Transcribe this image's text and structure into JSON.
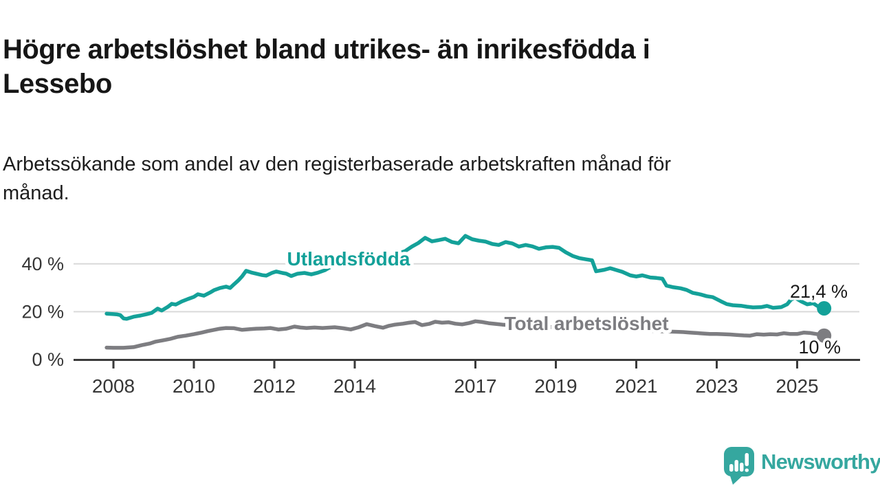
{
  "header": {
    "title_line1": "Högre arbetslöshet bland utrikes- än inrikesfödda i",
    "title_line2": "Lessebo",
    "subtitle_line1": "Arbetssökande som andel av den registerbaserade arbetskraften månad för",
    "subtitle_line2": "månad."
  },
  "colors": {
    "teal": "#14A199",
    "gray": "#7D7D81",
    "axis": "#3A3A3A",
    "grid": "#D9D9D9",
    "tick_text": "#363636",
    "value_text": "#1A1A1A",
    "logo": "#35A79F",
    "background": "#FFFFFF"
  },
  "footer": {
    "brand": "Newsworthy"
  },
  "chart_data": {
    "type": "line",
    "title": "Högre arbetslöshet bland utrikes- än inrikesfödda i Lessebo",
    "subtitle": "Arbetssökande som andel av den registerbaserade arbetskraften månad för månad.",
    "unit": "%",
    "grid": "horizontal",
    "legend_position": "inline-labels",
    "x_range": [
      2007.0,
      2026.6
    ],
    "y_range": [
      0,
      57
    ],
    "x_ticks": [
      2008,
      2010,
      2012,
      2014,
      2017,
      2019,
      2021,
      2023,
      2025
    ],
    "y_ticks": [
      {
        "value": 40,
        "label": "40 %"
      },
      {
        "value": 20,
        "label": "20 %"
      },
      {
        "value": 0,
        "label": "0 %"
      }
    ],
    "series": [
      {
        "id": "utlandsfodda",
        "name": "Utlandsfödda",
        "color": "#14A199",
        "end_value": 21.4,
        "end_label": "21,4 %",
        "points": [
          [
            2007.83,
            19.2
          ],
          [
            2008.0,
            19.0
          ],
          [
            2008.08,
            18.9
          ],
          [
            2008.17,
            18.6
          ],
          [
            2008.25,
            17.2
          ],
          [
            2008.33,
            17.0
          ],
          [
            2008.5,
            17.9
          ],
          [
            2008.67,
            18.4
          ],
          [
            2008.83,
            19.0
          ],
          [
            2008.95,
            19.5
          ],
          [
            2009.1,
            21.3
          ],
          [
            2009.2,
            20.5
          ],
          [
            2009.35,
            22.0
          ],
          [
            2009.45,
            23.3
          ],
          [
            2009.55,
            23.0
          ],
          [
            2009.7,
            24.3
          ],
          [
            2009.85,
            25.3
          ],
          [
            2010.0,
            26.2
          ],
          [
            2010.1,
            27.3
          ],
          [
            2010.25,
            26.7
          ],
          [
            2010.4,
            28.0
          ],
          [
            2010.5,
            29.0
          ],
          [
            2010.65,
            29.9
          ],
          [
            2010.8,
            30.5
          ],
          [
            2010.9,
            29.9
          ],
          [
            2011.0,
            31.5
          ],
          [
            2011.1,
            33.0
          ],
          [
            2011.2,
            34.8
          ],
          [
            2011.3,
            37.1
          ],
          [
            2011.45,
            36.3
          ],
          [
            2011.55,
            35.9
          ],
          [
            2011.7,
            35.3
          ],
          [
            2011.8,
            35.1
          ],
          [
            2011.95,
            36.3
          ],
          [
            2012.05,
            36.8
          ],
          [
            2012.2,
            36.2
          ],
          [
            2012.3,
            35.9
          ],
          [
            2012.42,
            34.9
          ],
          [
            2012.58,
            35.9
          ],
          [
            2012.75,
            36.2
          ],
          [
            2012.92,
            35.6
          ],
          [
            2013.08,
            36.3
          ],
          [
            2013.25,
            37.3
          ],
          [
            2013.42,
            38.9
          ],
          [
            2013.58,
            41.1
          ],
          [
            2013.75,
            42.6
          ],
          [
            2013.92,
            42.9
          ],
          [
            2014.08,
            41.6
          ],
          [
            2014.25,
            42.2
          ],
          [
            2014.42,
            43.1
          ],
          [
            2014.58,
            42.1
          ],
          [
            2014.75,
            41.4
          ],
          [
            2014.92,
            42.5
          ],
          [
            2015.08,
            44.4
          ],
          [
            2015.25,
            45.3
          ],
          [
            2015.42,
            47.2
          ],
          [
            2015.58,
            48.7
          ],
          [
            2015.75,
            50.9
          ],
          [
            2015.92,
            49.4
          ],
          [
            2016.08,
            49.9
          ],
          [
            2016.25,
            50.5
          ],
          [
            2016.42,
            49.1
          ],
          [
            2016.58,
            48.6
          ],
          [
            2016.75,
            51.7
          ],
          [
            2016.92,
            50.3
          ],
          [
            2017.08,
            49.7
          ],
          [
            2017.25,
            49.3
          ],
          [
            2017.42,
            48.3
          ],
          [
            2017.58,
            47.9
          ],
          [
            2017.75,
            49.1
          ],
          [
            2017.92,
            48.5
          ],
          [
            2018.08,
            47.2
          ],
          [
            2018.25,
            47.9
          ],
          [
            2018.42,
            47.3
          ],
          [
            2018.58,
            46.3
          ],
          [
            2018.75,
            46.9
          ],
          [
            2018.92,
            47.1
          ],
          [
            2019.08,
            46.7
          ],
          [
            2019.25,
            44.8
          ],
          [
            2019.42,
            43.3
          ],
          [
            2019.58,
            42.4
          ],
          [
            2019.75,
            41.9
          ],
          [
            2019.9,
            41.5
          ],
          [
            2020.0,
            36.9
          ],
          [
            2020.2,
            37.5
          ],
          [
            2020.35,
            38.2
          ],
          [
            2020.5,
            37.4
          ],
          [
            2020.65,
            36.7
          ],
          [
            2020.85,
            35.2
          ],
          [
            2021.0,
            34.7
          ],
          [
            2021.15,
            35.2
          ],
          [
            2021.35,
            34.3
          ],
          [
            2021.5,
            34.1
          ],
          [
            2021.65,
            33.8
          ],
          [
            2021.75,
            30.9
          ],
          [
            2021.9,
            30.3
          ],
          [
            2022.1,
            29.8
          ],
          [
            2022.25,
            29.1
          ],
          [
            2022.4,
            27.9
          ],
          [
            2022.6,
            27.2
          ],
          [
            2022.75,
            26.5
          ],
          [
            2022.9,
            26.1
          ],
          [
            2023.1,
            24.4
          ],
          [
            2023.25,
            23.2
          ],
          [
            2023.4,
            22.7
          ],
          [
            2023.6,
            22.5
          ],
          [
            2023.75,
            22.1
          ],
          [
            2023.9,
            21.8
          ],
          [
            2024.1,
            21.9
          ],
          [
            2024.25,
            22.4
          ],
          [
            2024.4,
            21.6
          ],
          [
            2024.6,
            21.9
          ],
          [
            2024.75,
            23.1
          ],
          [
            2024.85,
            25.1
          ],
          [
            2024.95,
            25.8
          ],
          [
            2025.1,
            24.3
          ],
          [
            2025.25,
            23.1
          ],
          [
            2025.4,
            23.5
          ],
          [
            2025.5,
            22.4
          ],
          [
            2025.6,
            21.9
          ],
          [
            2025.67,
            21.4
          ]
        ]
      },
      {
        "id": "total-arbetsloshet",
        "name": "Total arbetslöshet",
        "color": "#7D7D81",
        "end_value": 10,
        "end_label": "10 %",
        "points": [
          [
            2007.83,
            5.0
          ],
          [
            2008.0,
            4.9
          ],
          [
            2008.25,
            4.9
          ],
          [
            2008.5,
            5.2
          ],
          [
            2008.7,
            6.0
          ],
          [
            2008.9,
            6.7
          ],
          [
            2009.05,
            7.5
          ],
          [
            2009.25,
            8.1
          ],
          [
            2009.4,
            8.6
          ],
          [
            2009.6,
            9.5
          ],
          [
            2009.8,
            10.0
          ],
          [
            2010.0,
            10.6
          ],
          [
            2010.2,
            11.3
          ],
          [
            2010.35,
            11.9
          ],
          [
            2010.5,
            12.4
          ],
          [
            2010.65,
            12.9
          ],
          [
            2010.8,
            13.2
          ],
          [
            2011.0,
            13.1
          ],
          [
            2011.2,
            12.4
          ],
          [
            2011.4,
            12.7
          ],
          [
            2011.55,
            12.9
          ],
          [
            2011.75,
            13.0
          ],
          [
            2011.9,
            13.2
          ],
          [
            2012.1,
            12.6
          ],
          [
            2012.3,
            12.9
          ],
          [
            2012.5,
            13.8
          ],
          [
            2012.65,
            13.4
          ],
          [
            2012.8,
            13.2
          ],
          [
            2013.0,
            13.4
          ],
          [
            2013.2,
            13.2
          ],
          [
            2013.5,
            13.5
          ],
          [
            2013.7,
            13.1
          ],
          [
            2013.9,
            12.6
          ],
          [
            2014.1,
            13.5
          ],
          [
            2014.3,
            14.8
          ],
          [
            2014.5,
            14.0
          ],
          [
            2014.7,
            13.3
          ],
          [
            2014.85,
            14.1
          ],
          [
            2015.0,
            14.6
          ],
          [
            2015.2,
            15.0
          ],
          [
            2015.35,
            15.4
          ],
          [
            2015.5,
            15.7
          ],
          [
            2015.67,
            14.4
          ],
          [
            2015.85,
            14.9
          ],
          [
            2016.0,
            15.8
          ],
          [
            2016.17,
            15.4
          ],
          [
            2016.33,
            15.6
          ],
          [
            2016.5,
            15.0
          ],
          [
            2016.67,
            14.7
          ],
          [
            2016.85,
            15.3
          ],
          [
            2017.0,
            16.0
          ],
          [
            2017.17,
            15.7
          ],
          [
            2017.33,
            15.2
          ],
          [
            2017.5,
            14.9
          ],
          [
            2017.67,
            14.6
          ],
          [
            2017.83,
            14.4
          ],
          [
            2018.0,
            14.7
          ],
          [
            2018.3,
            14.2
          ],
          [
            2018.6,
            13.9
          ],
          [
            2018.9,
            13.6
          ],
          [
            2019.2,
            13.3
          ],
          [
            2019.5,
            13.0
          ],
          [
            2019.8,
            12.8
          ],
          [
            2020.0,
            12.9
          ],
          [
            2020.3,
            13.1
          ],
          [
            2020.6,
            12.7
          ],
          [
            2020.9,
            12.4
          ],
          [
            2021.2,
            12.1
          ],
          [
            2021.5,
            11.9
          ],
          [
            2021.8,
            11.7
          ],
          [
            2022.0,
            11.6
          ],
          [
            2022.17,
            11.5
          ],
          [
            2022.33,
            11.3
          ],
          [
            2022.5,
            11.1
          ],
          [
            2022.67,
            10.9
          ],
          [
            2022.83,
            10.7
          ],
          [
            2023.0,
            10.7
          ],
          [
            2023.17,
            10.6
          ],
          [
            2023.33,
            10.5
          ],
          [
            2023.5,
            10.3
          ],
          [
            2023.67,
            10.1
          ],
          [
            2023.83,
            10.0
          ],
          [
            2024.0,
            10.6
          ],
          [
            2024.17,
            10.4
          ],
          [
            2024.33,
            10.6
          ],
          [
            2024.5,
            10.5
          ],
          [
            2024.67,
            11.0
          ],
          [
            2024.83,
            10.7
          ],
          [
            2025.0,
            10.7
          ],
          [
            2025.17,
            11.3
          ],
          [
            2025.33,
            11.1
          ],
          [
            2025.5,
            10.6
          ],
          [
            2025.67,
            10.0
          ]
        ]
      }
    ]
  }
}
